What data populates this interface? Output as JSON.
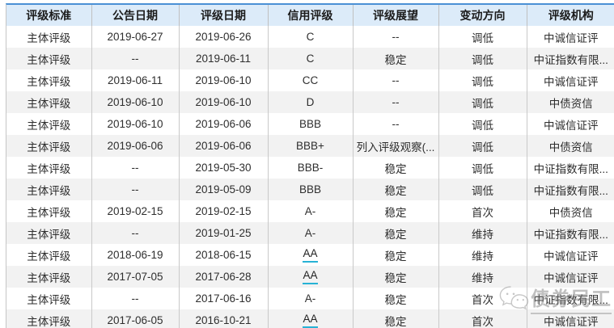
{
  "colors": {
    "top_border": "#4a90d5",
    "header_bg": "#dcebf9",
    "row_alt_bg": "#f2f2f2",
    "column_separator": "#c9c9c9",
    "body_text": "#2e2e2e",
    "rating_link_underline": "#27b2d5",
    "watermark_gray": "#8c8c8c"
  },
  "table": {
    "column_keys": [
      "rating-standard",
      "announcement-date",
      "rating-date",
      "credit-rating",
      "rating-outlook",
      "change-direction",
      "rating-agency"
    ],
    "columns": [
      {
        "label": "评级标准"
      },
      {
        "label": "公告日期"
      },
      {
        "label": "评级日期"
      },
      {
        "label": "信用评级"
      },
      {
        "label": "评级展望"
      },
      {
        "label": "变动方向"
      },
      {
        "label": "评级机构"
      }
    ],
    "rows": [
      {
        "cells": [
          "主体评级",
          "2019-06-27",
          "2019-06-26",
          "C",
          "--",
          "调低",
          "中诚信证评"
        ],
        "rating_underlined": false
      },
      {
        "cells": [
          "主体评级",
          "--",
          "2019-06-11",
          "C",
          "稳定",
          "调低",
          "中证指数有限..."
        ],
        "rating_underlined": false
      },
      {
        "cells": [
          "主体评级",
          "2019-06-11",
          "2019-06-10",
          "CC",
          "--",
          "调低",
          "中诚信证评"
        ],
        "rating_underlined": false
      },
      {
        "cells": [
          "主体评级",
          "2019-06-10",
          "2019-06-10",
          "D",
          "--",
          "调低",
          "中债资信"
        ],
        "rating_underlined": false
      },
      {
        "cells": [
          "主体评级",
          "2019-06-10",
          "2019-06-06",
          "BBB",
          "--",
          "调低",
          "中诚信证评"
        ],
        "rating_underlined": false
      },
      {
        "cells": [
          "主体评级",
          "2019-06-06",
          "2019-06-06",
          "BBB+",
          "列入评级观察(...",
          "调低",
          "中债资信"
        ],
        "rating_underlined": false
      },
      {
        "cells": [
          "主体评级",
          "--",
          "2019-05-30",
          "BBB-",
          "稳定",
          "调低",
          "中证指数有限..."
        ],
        "rating_underlined": false
      },
      {
        "cells": [
          "主体评级",
          "--",
          "2019-05-09",
          "BBB",
          "稳定",
          "调低",
          "中证指数有限..."
        ],
        "rating_underlined": false
      },
      {
        "cells": [
          "主体评级",
          "2019-02-15",
          "2019-02-15",
          "A-",
          "稳定",
          "首次",
          "中债资信"
        ],
        "rating_underlined": false
      },
      {
        "cells": [
          "主体评级",
          "--",
          "2019-01-25",
          "A-",
          "稳定",
          "维持",
          "中证指数有限..."
        ],
        "rating_underlined": false
      },
      {
        "cells": [
          "主体评级",
          "2018-06-19",
          "2018-06-15",
          "AA",
          "稳定",
          "维持",
          "中诚信证评"
        ],
        "rating_underlined": true
      },
      {
        "cells": [
          "主体评级",
          "2017-07-05",
          "2017-06-28",
          "AA",
          "稳定",
          "维持",
          "中诚信证评"
        ],
        "rating_underlined": true
      },
      {
        "cells": [
          "主体评级",
          "--",
          "2017-06-16",
          "A-",
          "稳定",
          "首次",
          "中证指数有限..."
        ],
        "rating_underlined": false
      },
      {
        "cells": [
          "主体评级",
          "2017-06-05",
          "2016-10-21",
          "AA",
          "稳定",
          "首次",
          "中诚信证评"
        ],
        "rating_underlined": true
      }
    ]
  },
  "watermark": {
    "text": "债券民工",
    "icon": "wechat-chat-bubbles-icon"
  }
}
